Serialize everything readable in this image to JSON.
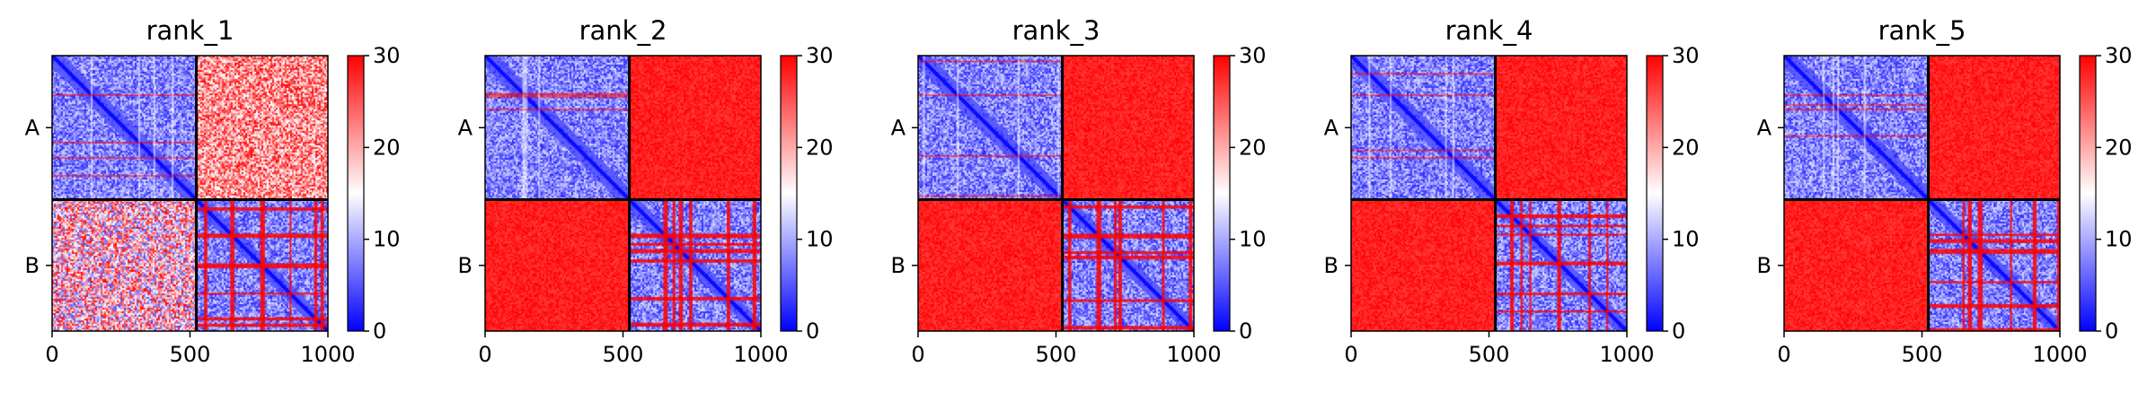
{
  "figure": {
    "colormap": "bwr",
    "colors": {
      "low": "#0000ff",
      "mid": "#ffffff",
      "high": "#ff0000",
      "frame": "#000000"
    }
  },
  "chart_data": [
    {
      "type": "heatmap",
      "title": "rank_1",
      "matrix_size": 1000,
      "chain_boundary": 523,
      "xticks": [
        0,
        500,
        1000
      ],
      "xtick_labels": [
        "0",
        "500",
        "1000"
      ],
      "ylabels": [
        "A",
        "B"
      ],
      "colorbar": {
        "ticks": [
          0,
          10,
          20,
          30
        ],
        "tick_labels": [
          "0",
          "10",
          "20",
          "30"
        ],
        "range": [
          0,
          30
        ]
      },
      "blocks": {
        "A-A": "low",
        "A-B": "mixed-high",
        "B-A": "mixed",
        "B-B": "low-with-high-stripes"
      }
    },
    {
      "type": "heatmap",
      "title": "rank_2",
      "matrix_size": 1000,
      "chain_boundary": 523,
      "xticks": [
        0,
        500,
        1000
      ],
      "xtick_labels": [
        "0",
        "500",
        "1000"
      ],
      "ylabels": [
        "A",
        "B"
      ],
      "colorbar": {
        "ticks": [
          0,
          10,
          20,
          30
        ],
        "tick_labels": [
          "0",
          "10",
          "20",
          "30"
        ],
        "range": [
          0,
          30
        ]
      },
      "blocks": {
        "A-A": "low",
        "A-B": "high",
        "B-A": "high",
        "B-B": "low-with-high-stripes"
      }
    },
    {
      "type": "heatmap",
      "title": "rank_3",
      "matrix_size": 1000,
      "chain_boundary": 523,
      "xticks": [
        0,
        500,
        1000
      ],
      "xtick_labels": [
        "0",
        "500",
        "1000"
      ],
      "ylabels": [
        "A",
        "B"
      ],
      "colorbar": {
        "ticks": [
          0,
          10,
          20,
          30
        ],
        "tick_labels": [
          "0",
          "10",
          "20",
          "30"
        ],
        "range": [
          0,
          30
        ]
      },
      "blocks": {
        "A-A": "low",
        "A-B": "high",
        "B-A": "high",
        "B-B": "low-with-high-stripes"
      }
    },
    {
      "type": "heatmap",
      "title": "rank_4",
      "matrix_size": 1000,
      "chain_boundary": 523,
      "xticks": [
        0,
        500,
        1000
      ],
      "xtick_labels": [
        "0",
        "500",
        "1000"
      ],
      "ylabels": [
        "A",
        "B"
      ],
      "colorbar": {
        "ticks": [
          0,
          10,
          20,
          30
        ],
        "tick_labels": [
          "0",
          "10",
          "20",
          "30"
        ],
        "range": [
          0,
          30
        ]
      },
      "blocks": {
        "A-A": "low",
        "A-B": "high",
        "B-A": "high",
        "B-B": "low-with-high-stripes"
      }
    },
    {
      "type": "heatmap",
      "title": "rank_5",
      "matrix_size": 1000,
      "chain_boundary": 523,
      "xticks": [
        0,
        500,
        1000
      ],
      "xtick_labels": [
        "0",
        "500",
        "1000"
      ],
      "ylabels": [
        "A",
        "B"
      ],
      "colorbar": {
        "ticks": [
          0,
          10,
          20,
          30
        ],
        "tick_labels": [
          "0",
          "10",
          "20",
          "30"
        ],
        "range": [
          0,
          30
        ]
      },
      "blocks": {
        "A-A": "low",
        "A-B": "high",
        "B-A": "high",
        "B-B": "low-with-high-stripes"
      }
    }
  ]
}
